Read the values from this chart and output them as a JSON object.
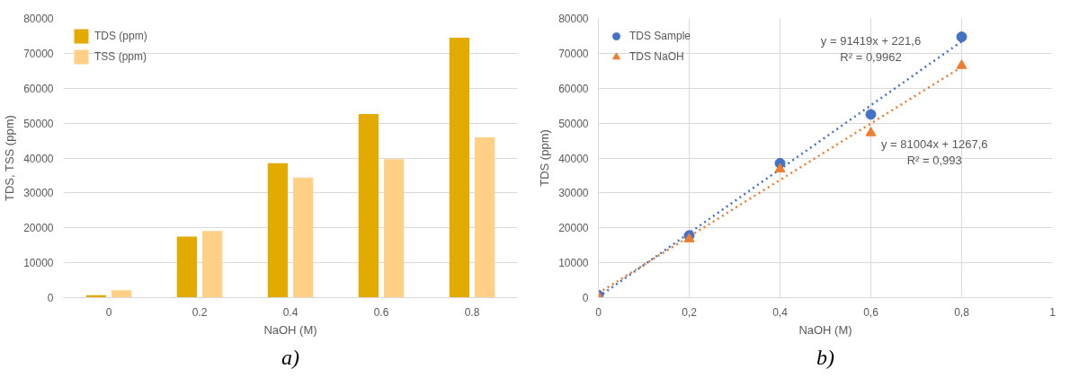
{
  "chart_data": [
    {
      "type": "bar",
      "xlabel": "NaOH (M)",
      "ylabel": "TDS, TSS (ppm)",
      "categories": [
        "0",
        "0.2",
        "0.4",
        "0.6",
        "0.8"
      ],
      "series": [
        {
          "name": "TDS (ppm)",
          "color": "#e3ab00",
          "values": [
            700,
            17500,
            38500,
            52600,
            74500
          ]
        },
        {
          "name": "TSS (ppm)",
          "color": "#ffd085",
          "values": [
            2100,
            19100,
            34400,
            39700,
            45900
          ]
        }
      ],
      "ylim": [
        0,
        80000
      ],
      "yticks": [
        0,
        10000,
        20000,
        30000,
        40000,
        50000,
        60000,
        70000,
        80000
      ],
      "grid": "y",
      "legend": "top left",
      "annotations": [
        "a)"
      ]
    },
    {
      "type": "scatter",
      "xlabel": "NaOH (M)",
      "ylabel": "TDS (ppm)",
      "x": [
        0,
        0.2,
        0.4,
        0.6,
        0.8
      ],
      "series": [
        {
          "name": "TDS Sample",
          "color": "#4472c4",
          "marker": "circle",
          "values": [
            700,
            17800,
            38500,
            52500,
            74700
          ]
        },
        {
          "name": "TDS NaOH",
          "color": "#ed7d31",
          "marker": "triangle",
          "values": [
            400,
            16800,
            36800,
            47200,
            66500
          ]
        },
        {
          "type": "line",
          "color": "#4472c4",
          "line_style": "dotted",
          "values": [
            200,
            18500,
            36800,
            55100,
            73400
          ]
        },
        {
          "type": "line",
          "color": "#ed7d31",
          "line_style": "dotted",
          "values": [
            1300,
            17500,
            33700,
            49900,
            66100
          ]
        }
      ],
      "xlim": [
        0,
        1
      ],
      "xticks": [
        0,
        {
          "value": 0.2,
          "label": "0,2"
        },
        {
          "value": 0.4,
          "label": "0,4"
        },
        {
          "value": 0.6,
          "label": "0,6"
        },
        {
          "value": 0.8,
          "label": "0,8"
        },
        1
      ],
      "ylim": [
        0,
        80000
      ],
      "yticks": [
        0,
        10000,
        20000,
        30000,
        40000,
        50000,
        60000,
        70000,
        80000
      ],
      "grid": true,
      "legend": "top left",
      "annotations": [
        "y = 91419x + 221,6\nR² = 0,9962",
        "y = 81004x + 1267,6\nR² = 0,993",
        "b)"
      ]
    }
  ]
}
